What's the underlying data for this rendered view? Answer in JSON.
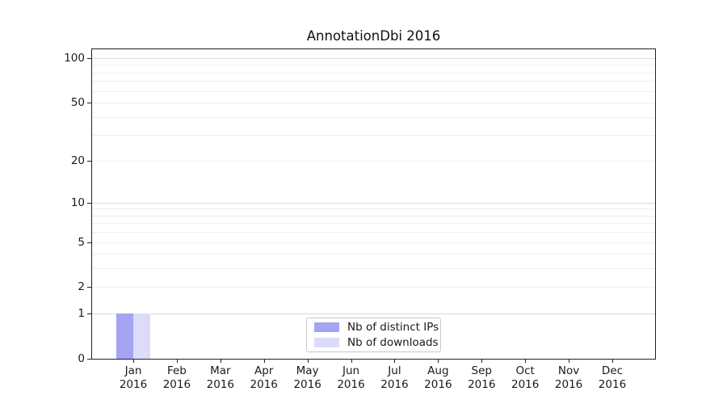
{
  "chart_data": {
    "type": "bar",
    "title": "AnnotationDbi 2016",
    "categories": [
      "Jan",
      "Feb",
      "Mar",
      "Apr",
      "May",
      "Jun",
      "Jul",
      "Aug",
      "Sep",
      "Oct",
      "Nov",
      "Dec"
    ],
    "category_year": "2016",
    "series": [
      {
        "name": "Nb of distinct IPs",
        "color": "#a4a4f2",
        "values": [
          1,
          0,
          0,
          0,
          0,
          0,
          0,
          0,
          0,
          0,
          0,
          0
        ]
      },
      {
        "name": "Nb of downloads",
        "color": "#dcdcf9",
        "values": [
          1,
          0,
          0,
          0,
          0,
          0,
          0,
          0,
          0,
          0,
          0,
          0
        ]
      }
    ],
    "yscale": "log1p",
    "ylim": [
      0,
      114
    ],
    "yticks": [
      0,
      1,
      2,
      5,
      10,
      20,
      50,
      100
    ],
    "grid_major_values": [
      1,
      10,
      100
    ],
    "grid_minor_values": [
      2,
      3,
      4,
      5,
      6,
      7,
      8,
      9,
      20,
      30,
      40,
      50,
      60,
      70,
      80,
      90
    ],
    "grid": "horizontal",
    "legend_position": "lower center"
  },
  "colors": {
    "background": "#ffffff",
    "axis": "#222222",
    "text": "#1a1a1a",
    "grid_major": "#d9d9d9",
    "grid_minor": "#efefef",
    "legend_border": "#c8c8c8"
  }
}
